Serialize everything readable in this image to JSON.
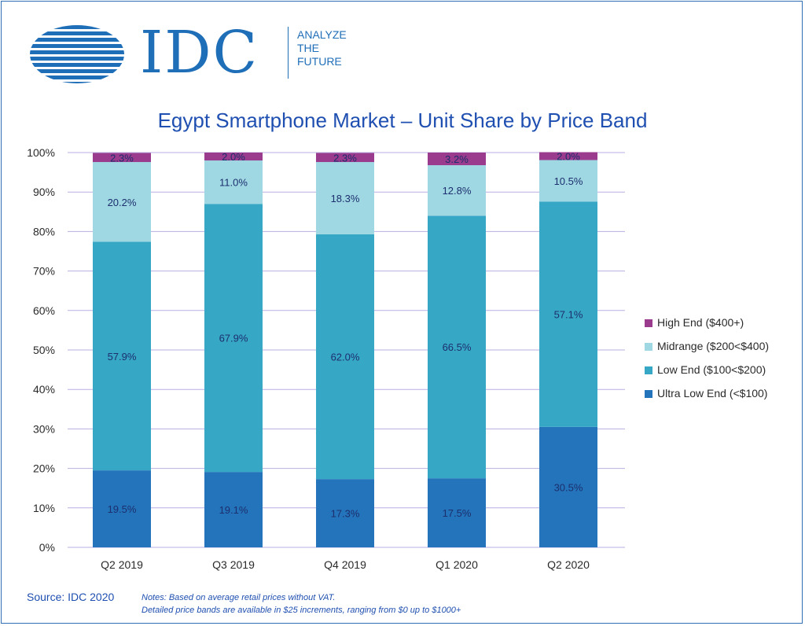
{
  "logo": {
    "wordmark": "IDC",
    "tagline": [
      "ANALYZE",
      "THE",
      "FUTURE"
    ]
  },
  "chart_data": {
    "type": "bar",
    "stacked": true,
    "title": "Egypt Smartphone Market – Unit Share by Price Band",
    "xlabel": "",
    "ylabel": "",
    "ylim": [
      0,
      100
    ],
    "yticks": [
      "0%",
      "10%",
      "20%",
      "30%",
      "40%",
      "50%",
      "60%",
      "70%",
      "80%",
      "90%",
      "100%"
    ],
    "grid": true,
    "legend_position": "right",
    "categories": [
      "Q2 2019",
      "Q3 2019",
      "Q4 2019",
      "Q1 2020",
      "Q2 2020"
    ],
    "series": [
      {
        "name": "Ultra Low End (<$100)",
        "color": "#2474bb",
        "values": [
          19.5,
          19.1,
          17.3,
          17.5,
          30.5
        ],
        "labels": [
          "19.5%",
          "19.1%",
          "17.3%",
          "17.5%",
          "30.5%"
        ]
      },
      {
        "name": "Low End ($100<$200)",
        "color": "#37a7c6",
        "values": [
          57.9,
          67.9,
          62.0,
          66.5,
          57.1
        ],
        "labels": [
          "57.9%",
          "67.9%",
          "62.0%",
          "66.5%",
          "57.1%"
        ]
      },
      {
        "name": "Midrange ($200<$400)",
        "color": "#9fd7e2",
        "values": [
          20.2,
          11.0,
          18.3,
          12.8,
          10.5
        ],
        "labels": [
          "20.2%",
          "11.0%",
          "18.3%",
          "12.8%",
          "10.5%"
        ]
      },
      {
        "name": "High End ($400+)",
        "color": "#9a3b8d",
        "values": [
          2.3,
          2.0,
          2.3,
          3.2,
          2.0
        ],
        "labels": [
          "2.3%",
          "2.0%",
          "2.3%",
          "3.2%",
          "2.0%"
        ]
      }
    ]
  },
  "legend_order": [
    3,
    2,
    1,
    0
  ],
  "footer": {
    "source": "Source: IDC 2020",
    "notes_line1": "Notes:  Based on average retail prices without VAT.",
    "notes_line2": "Detailed price bands are available in $25 increments, ranging from $0 up to $1000+"
  }
}
